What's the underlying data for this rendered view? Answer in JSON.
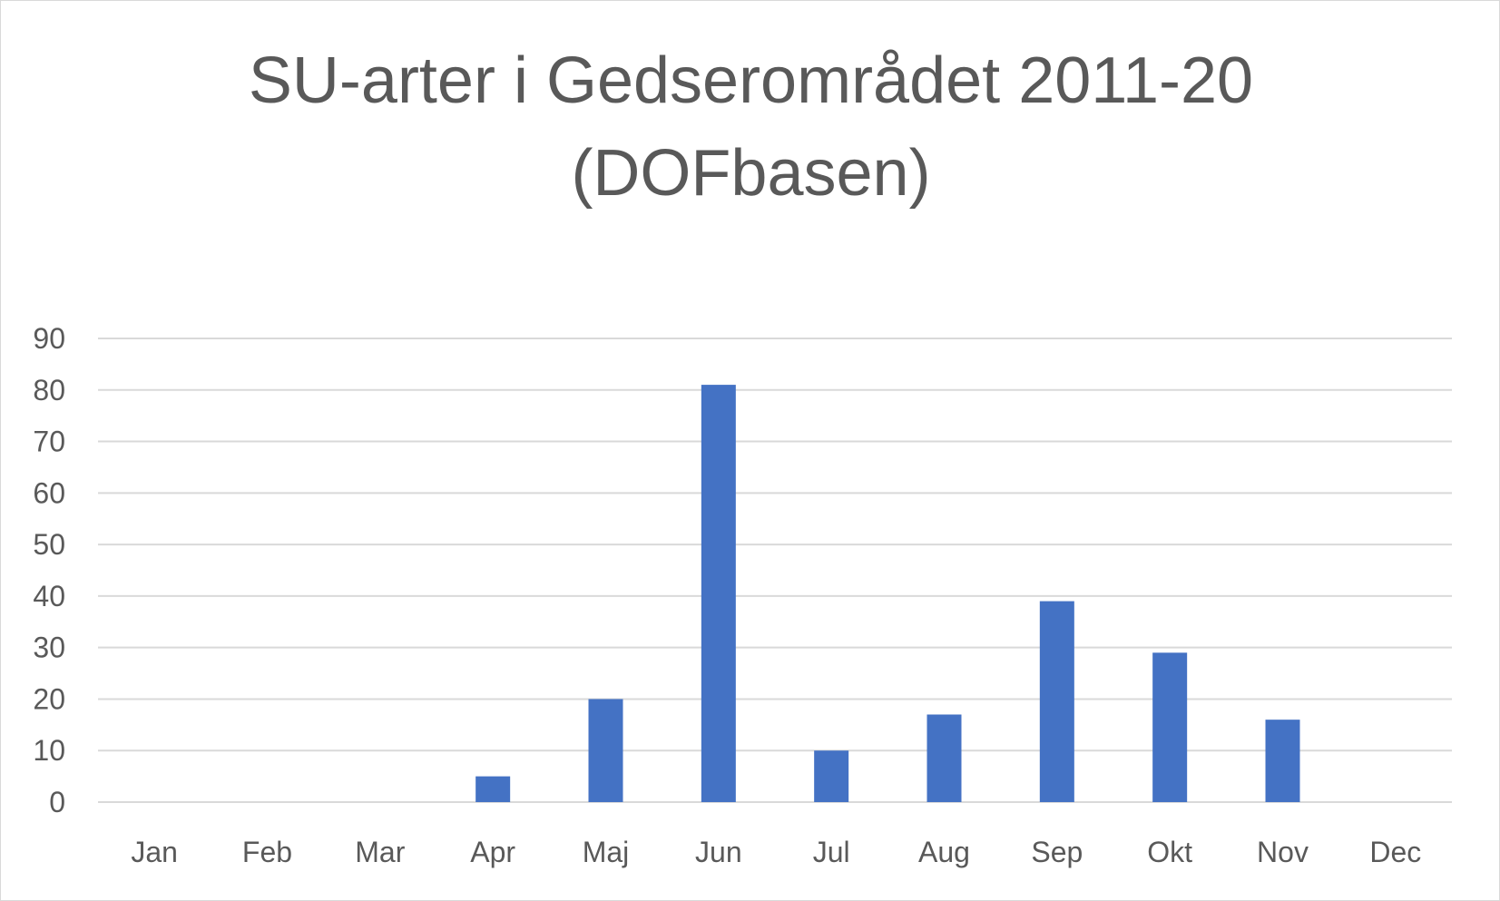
{
  "title_lines": [
    "SU-arter i Gedserområdet 2011-20",
    "(DOFbasen)"
  ],
  "colors": {
    "bar": "#4472c4",
    "grid": "#d9d9d9",
    "text": "#595959"
  },
  "chart_data": {
    "type": "bar",
    "title": "SU-arter i Gedserområdet 2011-20 (DOFbasen)",
    "categories": [
      "Jan",
      "Feb",
      "Mar",
      "Apr",
      "Maj",
      "Jun",
      "Jul",
      "Aug",
      "Sep",
      "Okt",
      "Nov",
      "Dec"
    ],
    "values": [
      0,
      0,
      0,
      5,
      20,
      81,
      10,
      17,
      39,
      29,
      16,
      0
    ],
    "ylim": [
      0,
      90
    ],
    "yticks": [
      "0",
      "10",
      "20",
      "30",
      "40",
      "50",
      "60",
      "70",
      "80",
      "90"
    ],
    "xlabel": "",
    "ylabel": "",
    "grid": true,
    "legend": "none"
  }
}
